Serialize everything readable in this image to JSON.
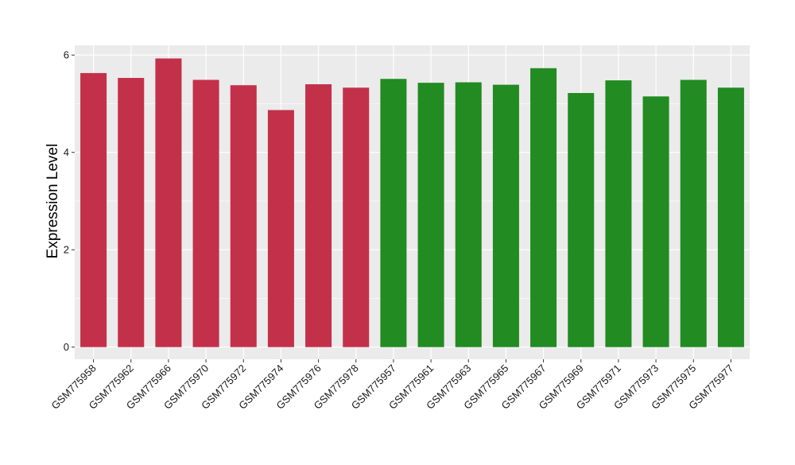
{
  "chart_data": {
    "type": "bar",
    "title": "",
    "xlabel": "",
    "ylabel": "Expression Level",
    "ylim": [
      -0.25,
      6.2
    ],
    "yticks": [
      0,
      2,
      4,
      6
    ],
    "grid": true,
    "legend": "none",
    "categories": [
      "GSM775958",
      "GSM775962",
      "GSM775966",
      "GSM775970",
      "GSM775972",
      "GSM775974",
      "GSM775976",
      "GSM775978",
      "GSM775957",
      "GSM775961",
      "GSM775963",
      "GSM775965",
      "GSM775967",
      "GSM775969",
      "GSM775971",
      "GSM775973",
      "GSM775975",
      "GSM775977"
    ],
    "values": [
      5.63,
      5.53,
      5.93,
      5.49,
      5.38,
      4.87,
      5.4,
      5.33,
      5.51,
      5.43,
      5.44,
      5.39,
      5.73,
      5.22,
      5.48,
      5.15,
      5.49,
      5.33
    ],
    "bar_colors": [
      "#c3304a",
      "#c3304a",
      "#c3304a",
      "#c3304a",
      "#c3304a",
      "#c3304a",
      "#c3304a",
      "#c3304a",
      "#228b22",
      "#228b22",
      "#228b22",
      "#228b22",
      "#228b22",
      "#228b22",
      "#228b22",
      "#228b22",
      "#228b22",
      "#228b22"
    ],
    "panel_background": "#ebebeb",
    "gridline_color": "#ffffff"
  }
}
